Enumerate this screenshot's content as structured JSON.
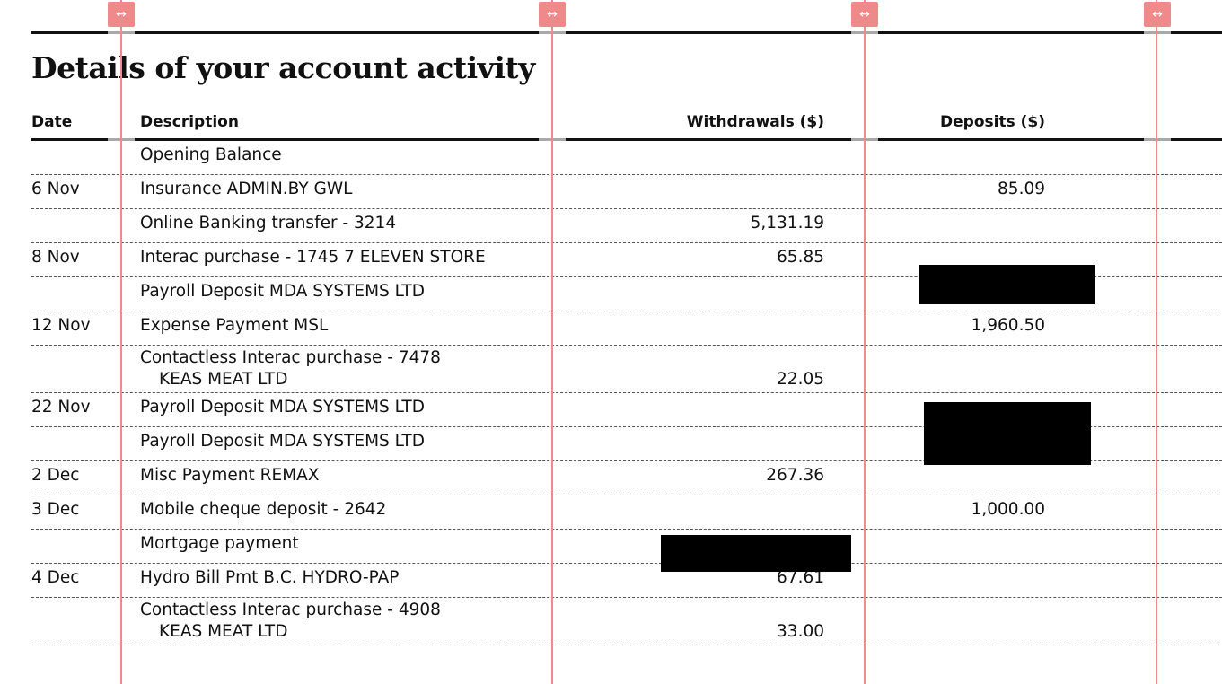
{
  "title": "Details of your account activity",
  "columns": {
    "date": "Date",
    "description": "Description",
    "withdrawals": "Withdrawals ($)",
    "deposits": "Deposits ($)"
  },
  "rows": [
    {
      "date": "",
      "desc": "Opening Balance",
      "desc2": "",
      "withdrawal": "",
      "deposit": ""
    },
    {
      "date": "6 Nov",
      "desc": "Insurance  ADMIN.BY GWL",
      "desc2": "",
      "withdrawal": "",
      "deposit": "85.09"
    },
    {
      "date": "",
      "desc": "Online Banking transfer - 3214",
      "desc2": "",
      "withdrawal": "5,131.19",
      "deposit": ""
    },
    {
      "date": "8 Nov",
      "desc": "Interac purchase - 1745  7 ELEVEN STORE",
      "desc2": "",
      "withdrawal": "65.85",
      "deposit": ""
    },
    {
      "date": "",
      "desc": "Payroll Deposit  MDA SYSTEMS LTD",
      "desc2": "",
      "withdrawal": "",
      "deposit": ""
    },
    {
      "date": "12 Nov",
      "desc": "Expense Payment  MSL",
      "desc2": "",
      "withdrawal": "",
      "deposit": "1,960.50"
    },
    {
      "date": "",
      "desc": "Contactless Interac purchase - 7478",
      "desc2": "KEAS MEAT LTD",
      "withdrawal": "22.05",
      "deposit": ""
    },
    {
      "date": "22 Nov",
      "desc": "Payroll Deposit  MDA SYSTEMS LTD",
      "desc2": "",
      "withdrawal": "",
      "deposit": ""
    },
    {
      "date": "",
      "desc": "Payroll Deposit  MDA SYSTEMS LTD",
      "desc2": "",
      "withdrawal": "",
      "deposit": ""
    },
    {
      "date": "2 Dec",
      "desc": "Misc Payment  REMAX",
      "desc2": "",
      "withdrawal": "267.36",
      "deposit": ""
    },
    {
      "date": "3 Dec",
      "desc": "Mobile cheque deposit - 2642",
      "desc2": "",
      "withdrawal": "",
      "deposit": "1,000.00"
    },
    {
      "date": "",
      "desc": "Mortgage payment",
      "desc2": "",
      "withdrawal": "",
      "deposit": ""
    },
    {
      "date": "4 Dec",
      "desc": "Hydro Bill Pmt  B.C. HYDRO-PAP",
      "desc2": "",
      "withdrawal": "67.61",
      "deposit": ""
    },
    {
      "date": "",
      "desc": "Contactless Interac purchase - 4908",
      "desc2": "KEAS MEAT LTD",
      "withdrawal": "33.00",
      "deposit": ""
    }
  ],
  "guides": {
    "handle_icon": "↔"
  },
  "colors": {
    "guide": "#ee8c8c",
    "redaction": "#000000",
    "text": "#111111"
  }
}
